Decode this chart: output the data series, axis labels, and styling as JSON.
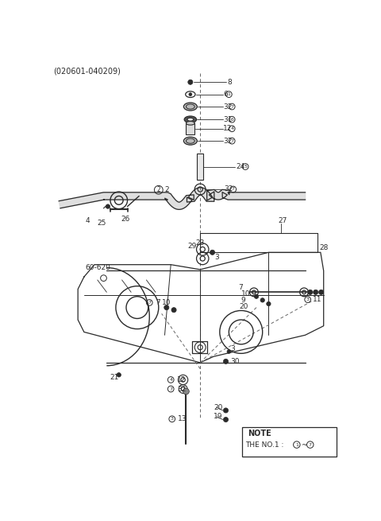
{
  "title": "(020601-040209)",
  "bg": "#ffffff",
  "lc": "#2a2a2a",
  "note_line1": "NOTE",
  "note_line2": "THE NO.1 : ①~⑦",
  "fig_w": 4.8,
  "fig_h": 6.55,
  "dpi": 100
}
